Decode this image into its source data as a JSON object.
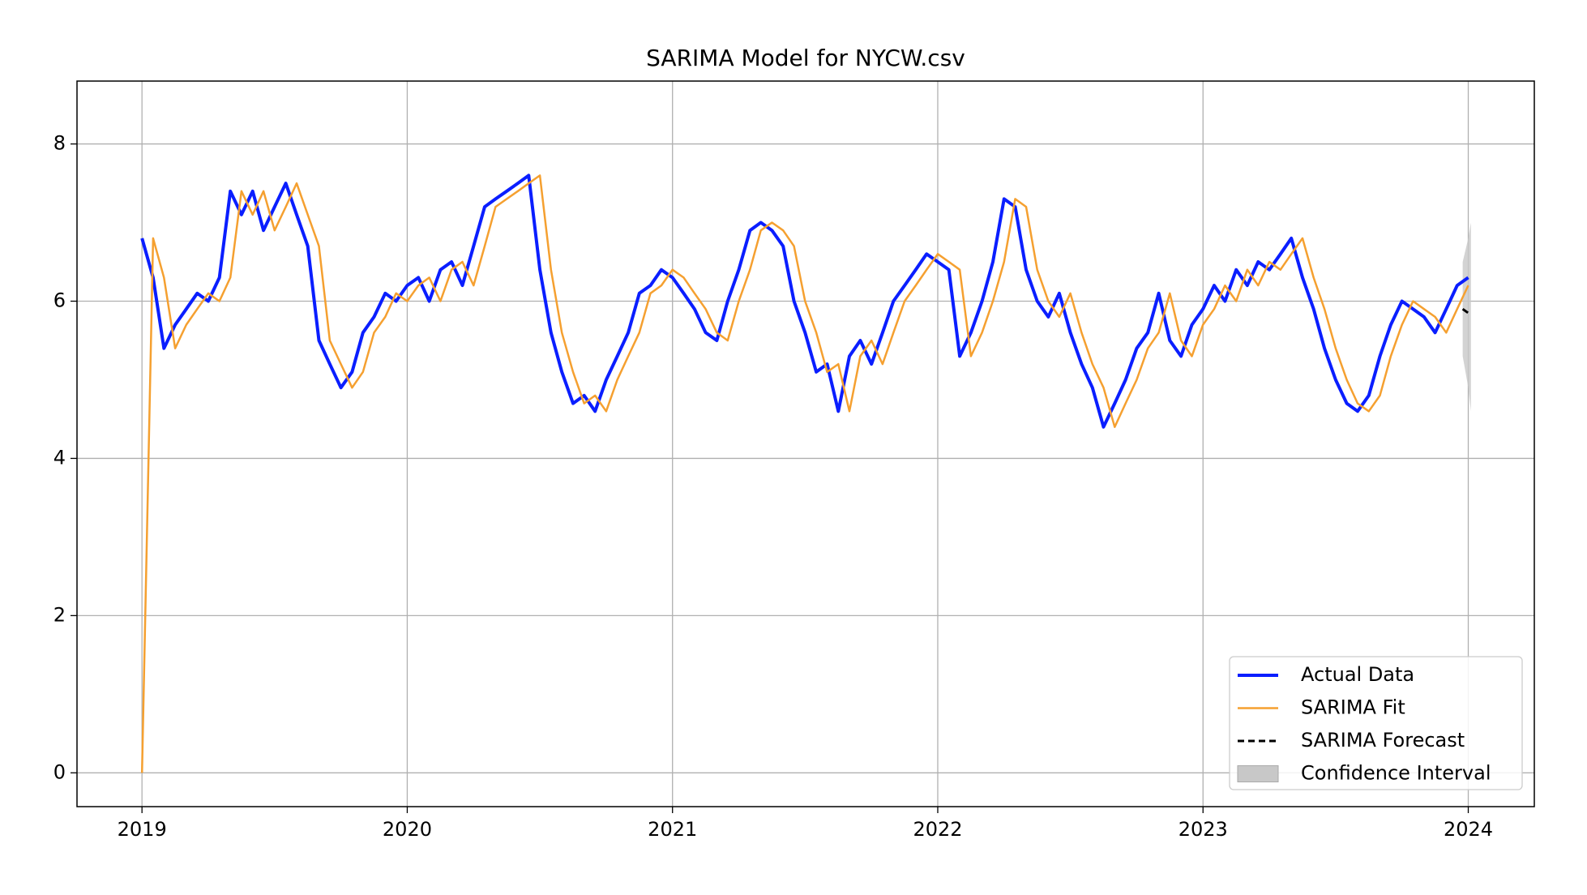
{
  "chart_data": {
    "type": "line",
    "title": "SARIMA Model for NYCW.csv",
    "xlim": [
      2018.755,
      2024.249
    ],
    "ylim": [
      -0.43,
      8.8
    ],
    "xticks": [
      2019,
      2020,
      2021,
      2022,
      2023,
      2024
    ],
    "yticks": [
      0,
      2,
      4,
      6,
      8
    ],
    "grid": true,
    "legend": "lower right",
    "x": [
      2019,
      2019.042,
      2019.083,
      2019.125,
      2019.167,
      2019.208,
      2019.25,
      2019.292,
      2019.333,
      2019.375,
      2019.417,
      2019.458,
      2019.5,
      2019.542,
      2019.583,
      2019.625,
      2019.667,
      2019.708,
      2019.75,
      2019.792,
      2019.833,
      2019.875,
      2019.917,
      2019.958,
      2020,
      2020.042,
      2020.083,
      2020.125,
      2020.167,
      2020.208,
      2020.25,
      2020.292,
      2020.333,
      2020.375,
      2020.417,
      2020.458,
      2020.5,
      2020.542,
      2020.583,
      2020.625,
      2020.667,
      2020.708,
      2020.75,
      2020.792,
      2020.833,
      2020.875,
      2020.917,
      2020.958,
      2021,
      2021.042,
      2021.083,
      2021.125,
      2021.167,
      2021.208,
      2021.25,
      2021.292,
      2021.333,
      2021.375,
      2021.417,
      2021.458,
      2021.5,
      2021.542,
      2021.583,
      2021.625,
      2021.667,
      2021.708,
      2021.75,
      2021.792,
      2021.833,
      2021.875,
      2021.917,
      2021.958,
      2022,
      2022.042,
      2022.083,
      2022.125,
      2022.167,
      2022.208,
      2022.25,
      2022.292,
      2022.333,
      2022.375,
      2022.417,
      2022.458,
      2022.5,
      2022.542,
      2022.583,
      2022.625,
      2022.667,
      2022.708,
      2022.75,
      2022.792,
      2022.833,
      2022.875,
      2022.917,
      2022.958,
      2023,
      2023.042,
      2023.083,
      2023.125,
      2023.167,
      2023.208,
      2023.25,
      2023.292,
      2023.333,
      2023.375,
      2023.417,
      2023.458,
      2023.5,
      2023.542,
      2023.583,
      2023.625,
      2023.667,
      2023.708,
      2023.75,
      2023.792,
      2023.833,
      2023.875,
      2023.917,
      2023.958,
      2024
    ],
    "series": [
      {
        "name": "Actual Data",
        "color": "#0a1eff",
        "width": 4,
        "values": [
          6.8,
          6.3,
          5.4,
          5.7,
          5.9,
          6.1,
          6.0,
          6.3,
          7.4,
          7.1,
          7.4,
          6.9,
          7.2,
          7.5,
          7.1,
          6.7,
          5.5,
          5.2,
          4.9,
          5.1,
          5.6,
          5.8,
          6.1,
          6.0,
          6.2,
          6.3,
          6.0,
          6.4,
          6.5,
          6.2,
          6.7,
          7.2,
          7.3,
          7.4,
          7.5,
          7.6,
          6.4,
          5.6,
          5.1,
          4.7,
          4.8,
          4.6,
          5.0,
          5.3,
          5.6,
          6.1,
          6.2,
          6.4,
          6.3,
          6.1,
          5.9,
          5.6,
          5.5,
          6.0,
          6.4,
          6.9,
          7.0,
          6.9,
          6.7,
          6.0,
          5.6,
          5.1,
          5.2,
          4.6,
          5.3,
          5.5,
          5.2,
          5.6,
          6.0,
          6.2,
          6.4,
          6.6,
          6.5,
          6.4,
          5.3,
          5.6,
          6.0,
          6.5,
          7.3,
          7.2,
          6.4,
          6.0,
          5.8,
          6.1,
          5.6,
          5.2,
          4.9,
          4.4,
          4.7,
          5.0,
          5.4,
          5.6,
          6.1,
          5.5,
          5.3,
          5.7,
          5.9,
          6.2,
          6.0,
          6.4,
          6.2,
          6.5,
          6.4,
          6.6,
          6.8,
          6.3,
          5.9,
          5.4,
          5.0,
          4.7,
          4.6,
          4.8,
          5.3,
          5.7,
          6.0,
          5.9,
          5.8,
          5.6,
          5.9,
          6.2,
          6.3
        ]
      },
      {
        "name": "SARIMA Fit",
        "color": "#f5a030",
        "width": 2.5,
        "values": [
          0,
          6.8,
          6.3,
          5.4,
          5.7,
          5.9,
          6.1,
          6.0,
          6.3,
          7.4,
          7.1,
          7.4,
          6.9,
          7.2,
          7.5,
          7.1,
          6.7,
          5.5,
          5.2,
          4.9,
          5.1,
          5.6,
          5.8,
          6.1,
          6.0,
          6.2,
          6.3,
          6.0,
          6.4,
          6.5,
          6.2,
          6.7,
          7.2,
          7.3,
          7.4,
          7.5,
          7.6,
          6.4,
          5.6,
          5.1,
          4.7,
          4.8,
          4.6,
          5.0,
          5.3,
          5.6,
          6.1,
          6.2,
          6.4,
          6.3,
          6.1,
          5.9,
          5.6,
          5.5,
          6.0,
          6.4,
          6.9,
          7.0,
          6.9,
          6.7,
          6.0,
          5.6,
          5.1,
          5.2,
          4.6,
          5.3,
          5.5,
          5.2,
          5.6,
          6.0,
          6.2,
          6.4,
          6.6,
          6.5,
          6.4,
          5.3,
          5.6,
          6.0,
          6.5,
          7.3,
          7.2,
          6.4,
          6.0,
          5.8,
          6.1,
          5.6,
          5.2,
          4.9,
          4.4,
          4.7,
          5.0,
          5.4,
          5.6,
          6.1,
          5.5,
          5.3,
          5.7,
          5.9,
          6.2,
          6.0,
          6.4,
          6.2,
          6.5,
          6.4,
          6.6,
          6.8,
          6.3,
          5.9,
          5.4,
          5.0,
          4.7,
          4.6,
          4.8,
          5.3,
          5.7,
          6.0,
          5.9,
          5.8,
          5.6,
          5.9,
          6.2
        ]
      },
      {
        "name": "SARIMA Forecast",
        "color": "#000000",
        "width": 3,
        "dash": true,
        "x": [
          2023.979,
          2024.0,
          2024.01
        ],
        "values": [
          5.9,
          5.85,
          5.82
        ]
      }
    ],
    "confidence_interval": {
      "name": "Confidence Interval",
      "color": "#c8c8c8",
      "x": [
        2023.979,
        2024.0,
        2024.01
      ],
      "lower": [
        5.3,
        4.9,
        4.6
      ],
      "upper": [
        6.5,
        6.8,
        7.0
      ]
    }
  }
}
